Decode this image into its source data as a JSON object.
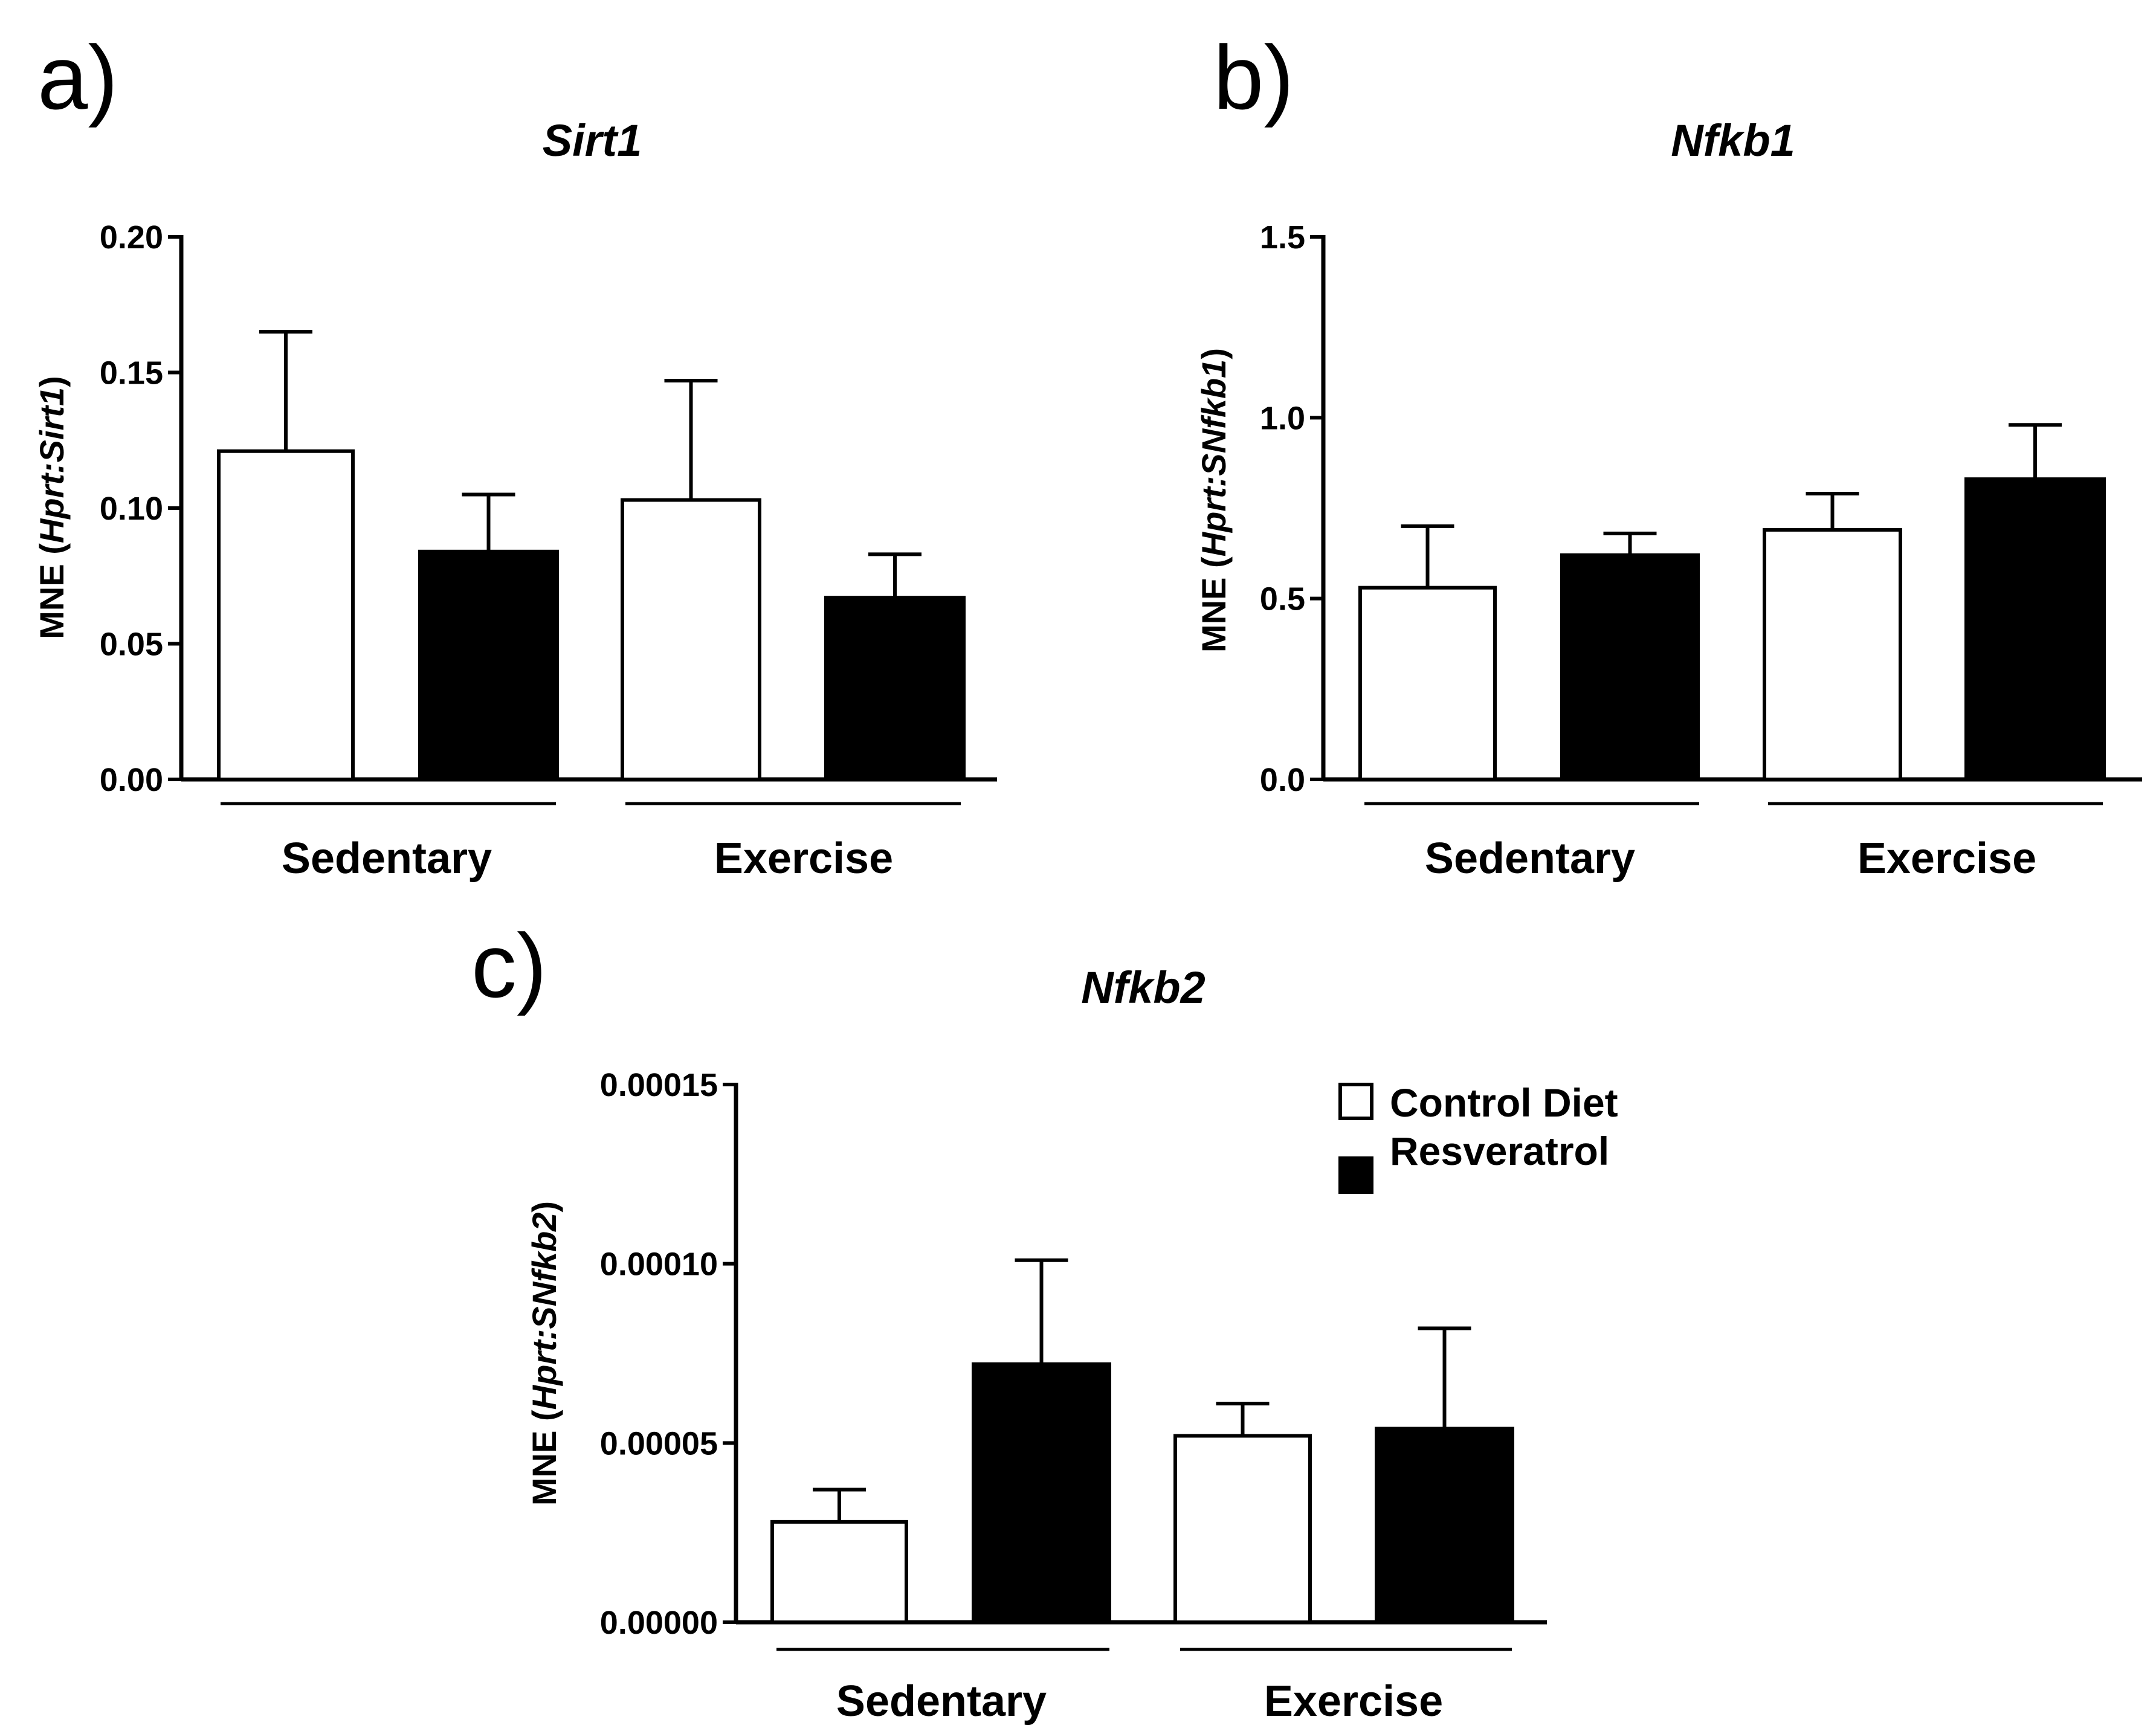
{
  "colors": {
    "control": "#ffffff",
    "resveratrol": "#000000",
    "stroke": "#000000"
  },
  "legend": [
    {
      "label": "Control Diet",
      "color": "#ffffff"
    },
    {
      "label": "Resveratrol",
      "color": "#000000"
    }
  ],
  "chart_data": [
    {
      "type": "bar",
      "panel": "a)",
      "title": "Sirt1",
      "ylabel": {
        "prefix": "MNE (",
        "italic": "Hprt:Sirt1",
        "suffix": ")"
      },
      "ylim": [
        0,
        0.2
      ],
      "yticks": [
        "0.00",
        "0.05",
        "0.10",
        "0.15",
        "0.20"
      ],
      "ytick_values": [
        0,
        0.05,
        0.1,
        0.15,
        0.2
      ],
      "categories": [
        "Sedentary",
        "Exercise"
      ],
      "series": [
        {
          "name": "Control Diet",
          "values": [
            0.121,
            0.103
          ],
          "errors": [
            0.044,
            0.044
          ]
        },
        {
          "name": "Resveratrol",
          "values": [
            0.084,
            0.067
          ],
          "errors": [
            0.021,
            0.016
          ]
        }
      ]
    },
    {
      "type": "bar",
      "panel": "b)",
      "title": "Nfkb1",
      "ylabel": {
        "prefix": "MNE (",
        "italic": "Hprt:SNfkb1",
        "suffix": ")"
      },
      "ylim": [
        0,
        1.5
      ],
      "yticks": [
        "0.0",
        "0.5",
        "1.0",
        "1.5"
      ],
      "ytick_values": [
        0,
        0.5,
        1.0,
        1.5
      ],
      "categories": [
        "Sedentary",
        "Exercise"
      ],
      "series": [
        {
          "name": "Control Diet",
          "values": [
            0.53,
            0.69
          ],
          "errors": [
            0.17,
            0.1
          ]
        },
        {
          "name": "Resveratrol",
          "values": [
            0.62,
            0.83
          ],
          "errors": [
            0.06,
            0.15
          ]
        }
      ]
    },
    {
      "type": "bar",
      "panel": "c)",
      "title": "Nfkb2",
      "ylabel": {
        "prefix": "MNE (",
        "italic": "Hprt:SNfkb2",
        "suffix": ")"
      },
      "ylim": [
        0,
        0.00015
      ],
      "yticks": [
        "0.00000",
        "0.00005",
        "0.00010",
        "0.00015"
      ],
      "ytick_values": [
        0,
        5e-05,
        0.0001,
        0.00015
      ],
      "categories": [
        "Sedentary",
        "Exercise"
      ],
      "series": [
        {
          "name": "Control Diet",
          "values": [
            2.8e-05,
            5.2e-05
          ],
          "errors": [
            9e-06,
            9e-06
          ]
        },
        {
          "name": "Resveratrol",
          "values": [
            7.2e-05,
            5.4e-05
          ],
          "errors": [
            2.9e-05,
            2.8e-05
          ]
        }
      ],
      "legend": true
    }
  ]
}
